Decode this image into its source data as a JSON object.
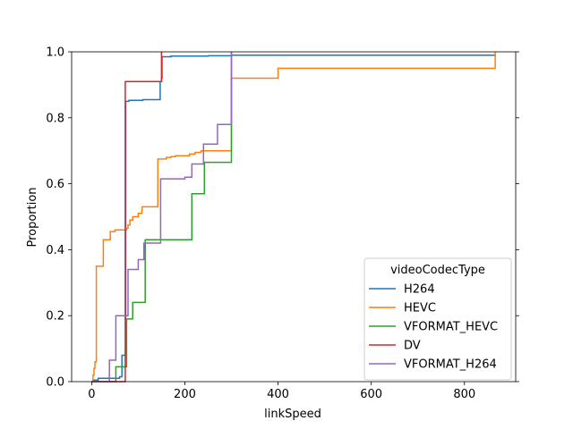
{
  "chart_data": {
    "type": "line",
    "subtype": "ecdf-step",
    "xlabel": "linkSpeed",
    "ylabel": "Proportion",
    "xlim": [
      -43,
      910
    ],
    "ylim": [
      0,
      1
    ],
    "xticks": [
      0,
      200,
      400,
      600,
      800
    ],
    "yticks": [
      0.0,
      0.2,
      0.4,
      0.6,
      0.8,
      1.0
    ],
    "grid": false,
    "legend": {
      "title": "videoCodecType",
      "placement": "lower-right"
    },
    "series": [
      {
        "name": "H264",
        "color": "#1f77b4",
        "points": [
          [
            0,
            0
          ],
          [
            3,
            0.005
          ],
          [
            8,
            0.005
          ],
          [
            14,
            0.01
          ],
          [
            50,
            0.01
          ],
          [
            60,
            0.015
          ],
          [
            65,
            0.015
          ],
          [
            65,
            0.08
          ],
          [
            70,
            0.08
          ],
          [
            73,
            0.85
          ],
          [
            80,
            0.853
          ],
          [
            110,
            0.855
          ],
          [
            145,
            0.855
          ],
          [
            147,
            0.91
          ],
          [
            150,
            0.92
          ],
          [
            151,
            0.985
          ],
          [
            170,
            0.987
          ],
          [
            250,
            0.988
          ],
          [
            300,
            0.99
          ],
          [
            866,
            0.993
          ]
        ]
      },
      {
        "name": "HEVC",
        "color": "#ff7f0e",
        "points": [
          [
            0,
            0
          ],
          [
            3,
            0.02
          ],
          [
            5,
            0.04
          ],
          [
            7,
            0.06
          ],
          [
            10,
            0.35
          ],
          [
            25,
            0.43
          ],
          [
            40,
            0.455
          ],
          [
            50,
            0.46
          ],
          [
            75,
            0.465
          ],
          [
            78,
            0.475
          ],
          [
            82,
            0.49
          ],
          [
            88,
            0.5
          ],
          [
            100,
            0.51
          ],
          [
            108,
            0.53
          ],
          [
            138,
            0.53
          ],
          [
            142,
            0.675
          ],
          [
            160,
            0.68
          ],
          [
            170,
            0.682
          ],
          [
            180,
            0.685
          ],
          [
            210,
            0.69
          ],
          [
            222,
            0.695
          ],
          [
            235,
            0.7
          ],
          [
            295,
            0.7
          ],
          [
            300,
            0.92
          ],
          [
            400,
            0.95
          ],
          [
            866,
            0.95
          ],
          [
            866,
            1.0
          ]
        ]
      },
      {
        "name": "VFORMAT_HEVC",
        "color": "#2ca02c",
        "points": [
          [
            0,
            0
          ],
          [
            52,
            0.0
          ],
          [
            52,
            0.045
          ],
          [
            72,
            0.045
          ],
          [
            75,
            0.19
          ],
          [
            88,
            0.24
          ],
          [
            115,
            0.43
          ],
          [
            215,
            0.43
          ],
          [
            215,
            0.57
          ],
          [
            242,
            0.57
          ],
          [
            242,
            0.665
          ],
          [
            300,
            0.665
          ],
          [
            300,
            1.0
          ]
        ]
      },
      {
        "name": "DV",
        "color": "#d62728",
        "points": [
          [
            0,
            0
          ],
          [
            70,
            0
          ],
          [
            72,
            0.91
          ],
          [
            150,
            0.91
          ],
          [
            150,
            1.0
          ]
        ]
      },
      {
        "name": "VFORMAT_H264",
        "color": "#9467bd",
        "points": [
          [
            0,
            0
          ],
          [
            25,
            0
          ],
          [
            38,
            0.065
          ],
          [
            52,
            0.2
          ],
          [
            72,
            0.2
          ],
          [
            78,
            0.34
          ],
          [
            100,
            0.37
          ],
          [
            112,
            0.42
          ],
          [
            148,
            0.615
          ],
          [
            200,
            0.62
          ],
          [
            215,
            0.66
          ],
          [
            240,
            0.72
          ],
          [
            270,
            0.78
          ],
          [
            300,
            0.78
          ],
          [
            300,
            1.0
          ]
        ]
      }
    ]
  }
}
